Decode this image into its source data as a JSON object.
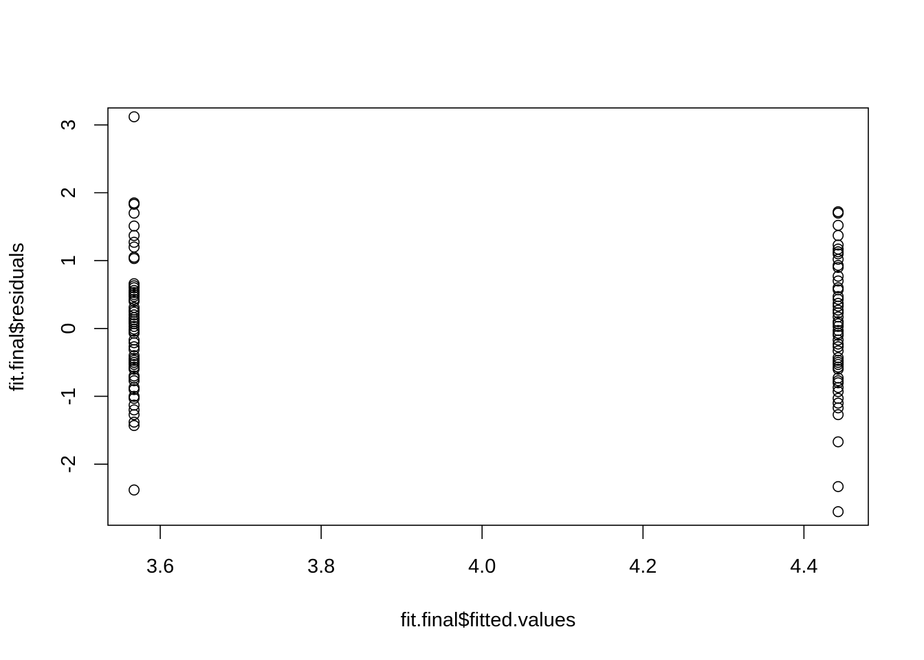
{
  "chart_data": {
    "type": "scatter",
    "title": "",
    "xlabel": "fit.final$fitted.values",
    "ylabel": "fit.final$residuals",
    "xlim": [
      3.535,
      4.48
    ],
    "ylim": [
      -2.9,
      3.25
    ],
    "x_ticks": [
      3.6,
      3.8,
      4.0,
      4.2,
      4.4
    ],
    "x_tick_labels": [
      "3.6",
      "3.8",
      "4.0",
      "4.2",
      "4.4"
    ],
    "y_ticks": [
      -2,
      -1,
      0,
      1,
      2,
      3
    ],
    "y_tick_labels": [
      "-2",
      "-1",
      "0",
      "1",
      "2",
      "3"
    ],
    "grid": false,
    "legend": "none",
    "marker": "open-circle",
    "colors": {
      "marker": "#000000",
      "axis": "#000000",
      "background": "#ffffff"
    },
    "series": [
      {
        "x": 3.5675,
        "y": [
          3.12,
          1.85,
          1.83,
          1.7,
          1.51,
          1.37,
          1.27,
          1.2,
          1.05,
          1.03,
          0.66,
          0.63,
          0.6,
          0.56,
          0.53,
          0.5,
          0.47,
          0.43,
          0.4,
          0.31,
          0.27,
          0.24,
          0.2,
          0.16,
          0.13,
          0.1,
          0.07,
          0.03,
          -0.01,
          -0.04,
          -0.07,
          -0.17,
          -0.21,
          -0.27,
          -0.31,
          -0.4,
          -0.44,
          -0.47,
          -0.5,
          -0.53,
          -0.57,
          -0.6,
          -0.7,
          -0.73,
          -0.77,
          -0.87,
          -0.9,
          -1.0,
          -1.03,
          -1.13,
          -1.2,
          -1.27,
          -1.38,
          -1.43,
          -2.38
        ]
      },
      {
        "x": 4.4425,
        "y": [
          1.72,
          1.7,
          1.52,
          1.37,
          1.23,
          1.17,
          1.13,
          1.1,
          1.02,
          0.93,
          0.9,
          0.77,
          0.7,
          0.6,
          0.57,
          0.47,
          0.43,
          0.37,
          0.33,
          0.27,
          0.23,
          0.17,
          0.1,
          0.07,
          0.03,
          -0.03,
          -0.07,
          -0.1,
          -0.17,
          -0.23,
          -0.27,
          -0.33,
          -0.43,
          -0.47,
          -0.5,
          -0.53,
          -0.57,
          -0.6,
          -0.73,
          -0.77,
          -0.8,
          -0.87,
          -0.93,
          -1.03,
          -1.1,
          -1.17,
          -1.27,
          -1.67,
          -2.33,
          -2.7
        ]
      }
    ]
  }
}
